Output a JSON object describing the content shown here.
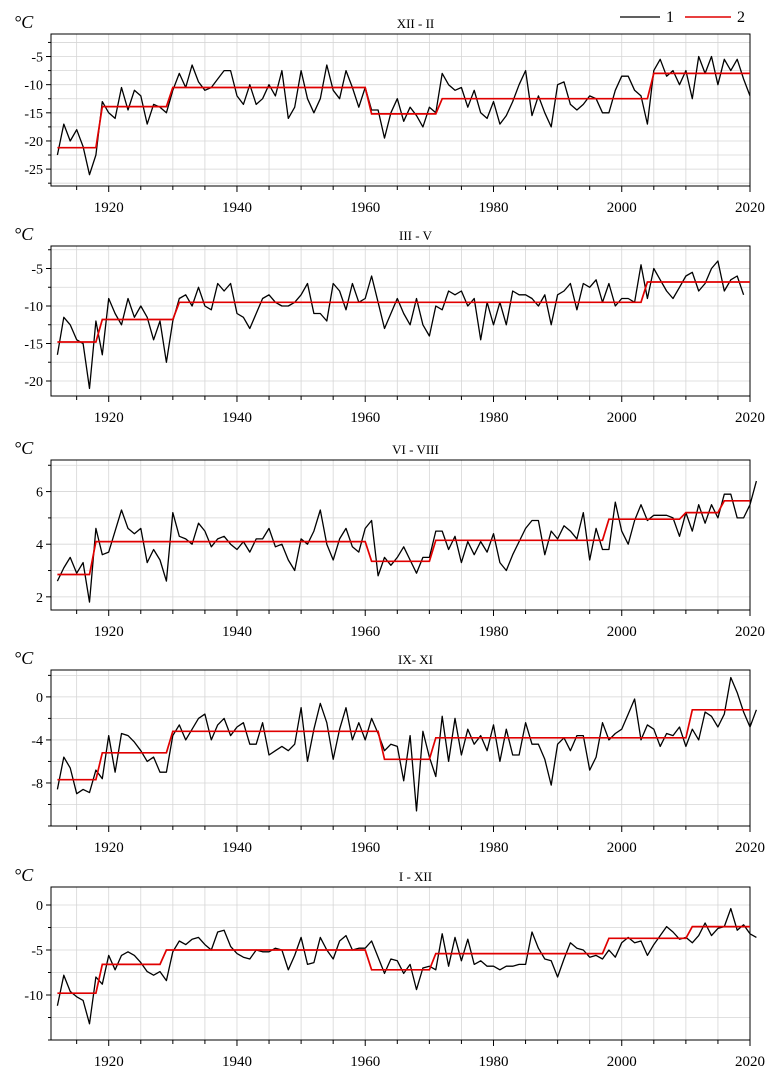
{
  "legend": {
    "items": [
      {
        "label": "1",
        "color": "#000000"
      },
      {
        "label": "2",
        "color": "#e00000"
      }
    ]
  },
  "unit": "°C",
  "chart_data": [
    {
      "type": "line",
      "title": "XII - II",
      "ylabel": "°C",
      "xlim": [
        1911,
        2020
      ],
      "ylim": [
        -28,
        -1
      ],
      "yticks": [
        -25,
        -20,
        -15,
        -10,
        -5
      ],
      "ytick_labels": [
        "-25",
        "-20",
        "-15",
        "-10",
        "-5"
      ],
      "xticks": [
        1920,
        1940,
        1960,
        1980,
        2000,
        2020
      ],
      "series": [
        {
          "name": "1",
          "color": "#000000",
          "x_start": 1912,
          "values": [
            -22.5,
            -17,
            -20,
            -18,
            -21,
            -26,
            -22.5,
            -13,
            -15,
            -16,
            -10.5,
            -14.5,
            -11,
            -12,
            -17,
            -13.5,
            -14,
            -15,
            -11,
            -8,
            -10.5,
            -6.5,
            -9.5,
            -11,
            -10.5,
            -9,
            -7.5,
            -7.5,
            -12,
            -13.5,
            -10,
            -13.5,
            -12.5,
            -10,
            -12,
            -7.5,
            -16,
            -14,
            -7.5,
            -12.5,
            -15,
            -12.5,
            -6.5,
            -11,
            -12.5,
            -7.5,
            -10.5,
            -14,
            -10.5,
            -14.5,
            -14.5,
            -19.5,
            -15,
            -12.5,
            -16.5,
            -14,
            -15.5,
            -17.5,
            -14,
            -15,
            -8,
            -10,
            -11,
            -10.5,
            -14,
            -11,
            -15,
            -16,
            -13,
            -17,
            -15.5,
            -13,
            -10,
            -7.5,
            -15.5,
            -12,
            -15,
            -17.5,
            -10,
            -9.5,
            -13.5,
            -14.5,
            -13.5,
            -12,
            -12.5,
            -15,
            -15,
            -11,
            -8.5,
            -8.5,
            -11,
            -12,
            -17,
            -7.5,
            -5.5,
            -8.5,
            -7.5,
            -10,
            -7.5,
            -12.5,
            -5,
            -8,
            -5,
            -10,
            -5.5,
            -7.5,
            -5.5,
            -9,
            -12
          ]
        },
        {
          "name": "2",
          "color": "#e00000",
          "segments": [
            {
              "x0": 1912,
              "x1": 1918,
              "y": -21.2
            },
            {
              "x0": 1919,
              "x1": 1929,
              "y": -13.9
            },
            {
              "x0": 1930,
              "x1": 1960,
              "y": -10.5
            },
            {
              "x0": 1961,
              "x1": 1971,
              "y": -15.2
            },
            {
              "x0": 1972,
              "x1": 2004,
              "y": -12.5
            },
            {
              "x0": 2005,
              "x1": 2020,
              "y": -8
            }
          ]
        }
      ]
    },
    {
      "type": "line",
      "title": "III - V",
      "ylabel": "°C",
      "xlim": [
        1911,
        2020
      ],
      "ylim": [
        -22,
        -2
      ],
      "yticks": [
        -20,
        -15,
        -10,
        -5
      ],
      "ytick_labels": [
        "-20",
        "-15",
        "-10",
        "-5"
      ],
      "xticks": [
        1920,
        1940,
        1960,
        1980,
        2000,
        2020
      ],
      "series": [
        {
          "name": "1",
          "color": "#000000",
          "x_start": 1912,
          "values": [
            -16.5,
            -11.5,
            -12.5,
            -14.5,
            -15,
            -21,
            -12,
            -16.5,
            -9,
            -11,
            -12.5,
            -9,
            -11.5,
            -10,
            -11.5,
            -14.5,
            -12,
            -17.5,
            -12,
            -9,
            -8.5,
            -10,
            -7.5,
            -10,
            -10.5,
            -7,
            -8,
            -7,
            -11,
            -11.5,
            -13,
            -11,
            -9,
            -8.5,
            -9.5,
            -10,
            -10,
            -9.5,
            -8.5,
            -7,
            -11,
            -11,
            -12,
            -7,
            -8,
            -10.5,
            -7,
            -9.5,
            -9,
            -6,
            -9.5,
            -13,
            -11,
            -9,
            -11,
            -12.5,
            -9,
            -12.5,
            -14,
            -10,
            -10.5,
            -8,
            -8.5,
            -8,
            -10,
            -9,
            -14.5,
            -9.5,
            -12.5,
            -9.5,
            -12.5,
            -8,
            -8.5,
            -8.5,
            -9,
            -10,
            -8.5,
            -12.5,
            -8.5,
            -8,
            -7,
            -10.5,
            -7,
            -7.5,
            -6.5,
            -9.5,
            -7,
            -10,
            -9,
            -9,
            -9.5,
            -4.5,
            -9,
            -5,
            -6.5,
            -8,
            -9,
            -7.5,
            -6,
            -5.5,
            -8,
            -7,
            -5,
            -4,
            -8,
            -6.5,
            -6,
            -8.5
          ]
        },
        {
          "name": "2",
          "color": "#e00000",
          "segments": [
            {
              "x0": 1912,
              "x1": 1918,
              "y": -14.8
            },
            {
              "x0": 1919,
              "x1": 1930,
              "y": -11.8
            },
            {
              "x0": 1931,
              "x1": 2003,
              "y": -9.5
            },
            {
              "x0": 2004,
              "x1": 2020,
              "y": -6.8
            }
          ]
        }
      ]
    },
    {
      "type": "line",
      "title": "VI - VIII",
      "ylabel": "°C",
      "xlim": [
        1911,
        2020
      ],
      "ylim": [
        1.5,
        7.2
      ],
      "yticks": [
        2,
        4,
        6
      ],
      "ytick_labels": [
        "2",
        "4",
        "6"
      ],
      "xticks": [
        1920,
        1940,
        1960,
        1980,
        2000,
        2020
      ],
      "series": [
        {
          "name": "1",
          "color": "#000000",
          "x_start": 1912,
          "values": [
            2.6,
            3.1,
            3.5,
            2.9,
            3.3,
            1.8,
            4.6,
            3.6,
            3.7,
            4.5,
            5.3,
            4.6,
            4.4,
            4.6,
            3.3,
            3.8,
            3.4,
            2.6,
            5.2,
            4.3,
            4.2,
            4,
            4.8,
            4.5,
            3.9,
            4.2,
            4.3,
            4,
            3.8,
            4.1,
            3.7,
            4.2,
            4.2,
            4.6,
            3.9,
            4,
            3.4,
            3,
            4.2,
            4,
            4.5,
            5.3,
            4,
            3.4,
            4.2,
            4.6,
            3.9,
            3.7,
            4.6,
            4.9,
            2.8,
            3.5,
            3.2,
            3.5,
            3.9,
            3.4,
            2.9,
            3.5,
            3.5,
            4.5,
            4.5,
            3.8,
            4.3,
            3.3,
            4.1,
            3.6,
            4.1,
            3.7,
            4.4,
            3.3,
            3,
            3.6,
            4.1,
            4.6,
            4.9,
            4.9,
            3.6,
            4.5,
            4.2,
            4.7,
            4.5,
            4.2,
            5.2,
            3.4,
            4.6,
            3.8,
            3.8,
            5.6,
            4.5,
            4,
            4.9,
            5.5,
            4.9,
            5.1,
            5.1,
            5.1,
            5,
            4.3,
            5.2,
            4.5,
            5.5,
            4.8,
            5.5,
            5,
            5.9,
            5.9,
            5,
            5,
            5.5,
            6.4
          ]
        },
        {
          "name": "2",
          "color": "#e00000",
          "segments": [
            {
              "x0": 1912,
              "x1": 1917,
              "y": 2.85
            },
            {
              "x0": 1918,
              "x1": 1960,
              "y": 4.1
            },
            {
              "x0": 1961,
              "x1": 1970,
              "y": 3.35
            },
            {
              "x0": 1971,
              "x1": 1997,
              "y": 4.15
            },
            {
              "x0": 1998,
              "x1": 2009,
              "y": 4.95
            },
            {
              "x0": 2010,
              "x1": 2015,
              "y": 5.2
            },
            {
              "x0": 2016,
              "x1": 2020,
              "y": 5.65
            }
          ]
        }
      ]
    },
    {
      "type": "line",
      "title": "IX- XI",
      "ylabel": "°C",
      "xlim": [
        1911,
        2020
      ],
      "ylim": [
        -12,
        2.5
      ],
      "yticks": [
        -8,
        -4,
        0
      ],
      "ytick_labels": [
        "-8",
        "-4",
        "0"
      ],
      "xticks": [
        1920,
        1940,
        1960,
        1980,
        2000,
        2020
      ],
      "series": [
        {
          "name": "1",
          "color": "#000000",
          "x_start": 1912,
          "values": [
            -8.6,
            -5.6,
            -6.6,
            -9,
            -8.6,
            -8.9,
            -6.8,
            -7.6,
            -3.6,
            -7,
            -3.4,
            -3.6,
            -4.2,
            -5,
            -6,
            -5.6,
            -7,
            -7,
            -3.6,
            -2.6,
            -4,
            -3,
            -2,
            -1.6,
            -4,
            -2.6,
            -2,
            -3.6,
            -2.8,
            -2.4,
            -4.4,
            -4.4,
            -2.4,
            -5.4,
            -5,
            -4.6,
            -5,
            -4.4,
            -1,
            -6,
            -3,
            -0.6,
            -2.4,
            -5.8,
            -3,
            -1,
            -4,
            -2.4,
            -4,
            -2,
            -3.4,
            -5,
            -4.4,
            -4.6,
            -7.8,
            -3.6,
            -10.6,
            -3.2,
            -5.6,
            -7.4,
            -1.8,
            -6,
            -2,
            -5.4,
            -3,
            -4.4,
            -3.6,
            -5,
            -2.6,
            -6,
            -3,
            -5.4,
            -5.4,
            -2.4,
            -4.4,
            -4.4,
            -5.8,
            -8.2,
            -4.4,
            -3.8,
            -5,
            -3.6,
            -3.6,
            -6.8,
            -5.6,
            -2.4,
            -4,
            -3.4,
            -3,
            -1.6,
            -0.2,
            -4,
            -2.6,
            -3,
            -4.6,
            -3.4,
            -3.6,
            -2.8,
            -4.6,
            -3,
            -4,
            -1.4,
            -1.8,
            -2.8,
            -1.6,
            1.8,
            0.4,
            -1.4,
            -2.8,
            -1.2
          ]
        },
        {
          "name": "2",
          "color": "#e00000",
          "segments": [
            {
              "x0": 1912,
              "x1": 1918,
              "y": -7.7
            },
            {
              "x0": 1919,
              "x1": 1929,
              "y": -5.2
            },
            {
              "x0": 1930,
              "x1": 1962,
              "y": -3.2
            },
            {
              "x0": 1963,
              "x1": 1970,
              "y": -5.8
            },
            {
              "x0": 1971,
              "x1": 2010,
              "y": -3.8
            },
            {
              "x0": 2011,
              "x1": 2020,
              "y": -1.2
            }
          ]
        }
      ]
    },
    {
      "type": "line",
      "title": "I - XII",
      "ylabel": "°C",
      "xlim": [
        1911,
        2020
      ],
      "ylim": [
        -15,
        2
      ],
      "yticks": [
        -10,
        -5,
        0
      ],
      "ytick_labels": [
        "-10",
        "-5",
        "0"
      ],
      "xticks": [
        1920,
        1940,
        1960,
        1980,
        2000,
        2020
      ],
      "series": [
        {
          "name": "1",
          "color": "#000000",
          "x_start": 1912,
          "values": [
            -11.2,
            -7.8,
            -9.6,
            -10.2,
            -10.6,
            -13.2,
            -8,
            -8.8,
            -5.6,
            -7.2,
            -5.6,
            -5.2,
            -5.6,
            -6.4,
            -7.4,
            -7.8,
            -7.4,
            -8.4,
            -5.2,
            -4,
            -4.4,
            -3.8,
            -3.6,
            -4.4,
            -5,
            -3,
            -2.8,
            -4.6,
            -5.4,
            -5.8,
            -6,
            -5,
            -5.2,
            -5.2,
            -4.8,
            -5,
            -7.2,
            -5.6,
            -3.6,
            -6.6,
            -6.4,
            -3.6,
            -5,
            -6,
            -4,
            -3.4,
            -5,
            -4.8,
            -4.8,
            -4,
            -5.8,
            -7.6,
            -6,
            -6.2,
            -7.6,
            -6.6,
            -9.4,
            -7,
            -6.8,
            -7.2,
            -3.2,
            -6.8,
            -3.6,
            -6.2,
            -3.8,
            -6.6,
            -6.2,
            -6.8,
            -6.8,
            -7.2,
            -6.8,
            -6.8,
            -6.6,
            -6.6,
            -3,
            -4.8,
            -6,
            -6.2,
            -8,
            -6,
            -4.2,
            -4.8,
            -5,
            -5.8,
            -5.6,
            -6,
            -5,
            -5.8,
            -4.2,
            -3.6,
            -4.2,
            -4,
            -5.6,
            -4.4,
            -3.4,
            -2.4,
            -3,
            -3.8,
            -3.6,
            -4.2,
            -3.4,
            -2,
            -3.4,
            -2.6,
            -2.4,
            -0.4,
            -2.8,
            -2.2,
            -3.2,
            -3.6
          ]
        },
        {
          "name": "2",
          "color": "#e00000",
          "segments": [
            {
              "x0": 1912,
              "x1": 1918,
              "y": -9.8
            },
            {
              "x0": 1919,
              "x1": 1928,
              "y": -6.6
            },
            {
              "x0": 1929,
              "x1": 1960,
              "y": -5
            },
            {
              "x0": 1961,
              "x1": 1970,
              "y": -7.2
            },
            {
              "x0": 1971,
              "x1": 1997,
              "y": -5.4
            },
            {
              "x0": 1998,
              "x1": 2010,
              "y": -3.7
            },
            {
              "x0": 2011,
              "x1": 2020,
              "y": -2.4
            }
          ]
        }
      ]
    }
  ]
}
